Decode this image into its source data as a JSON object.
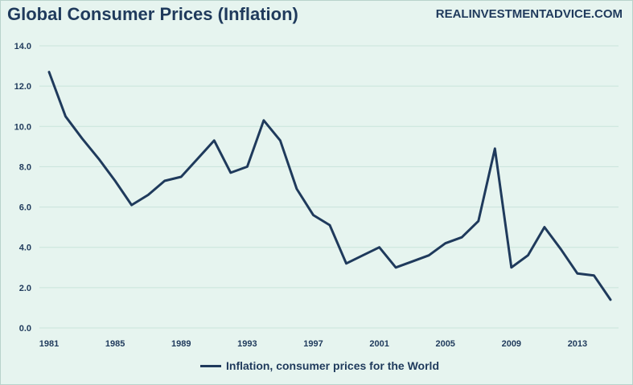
{
  "header": {
    "title": "Global Consumer Prices (Inflation)",
    "source": "REALINVESTMENTADVICE.COM"
  },
  "colors": {
    "line": "#1f3a5c",
    "grid": "#c9e3db",
    "background": "#e6f4ef"
  },
  "chart_data": {
    "type": "line",
    "title": "Global Consumer Prices (Inflation)",
    "xlabel": "",
    "ylabel": "",
    "ylim": [
      0,
      14
    ],
    "xlim": [
      1981,
      2015
    ],
    "y_ticks": [
      "0.0",
      "2.0",
      "4.0",
      "6.0",
      "8.0",
      "10.0",
      "12.0",
      "14.0"
    ],
    "x_ticks": [
      "1981",
      "1985",
      "1989",
      "1993",
      "1997",
      "2001",
      "2005",
      "2009",
      "2013"
    ],
    "grid": true,
    "legend_position": "bottom",
    "series": [
      {
        "name": "Inflation, consumer prices for the World",
        "x": [
          1981,
          1982,
          1983,
          1984,
          1985,
          1986,
          1987,
          1988,
          1989,
          1990,
          1991,
          1992,
          1993,
          1994,
          1995,
          1996,
          1997,
          1998,
          1999,
          2000,
          2001,
          2002,
          2003,
          2004,
          2005,
          2006,
          2007,
          2008,
          2009,
          2010,
          2011,
          2012,
          2013,
          2014,
          2015
        ],
        "values": [
          12.7,
          10.5,
          9.4,
          8.4,
          7.3,
          6.1,
          6.6,
          7.3,
          7.5,
          8.4,
          9.3,
          7.7,
          8.0,
          10.3,
          9.3,
          6.9,
          5.6,
          5.1,
          3.2,
          3.6,
          4.0,
          3.0,
          3.3,
          3.6,
          4.2,
          4.5,
          5.3,
          8.9,
          3.0,
          3.6,
          5.0,
          3.9,
          2.7,
          2.6,
          1.4
        ]
      }
    ]
  }
}
